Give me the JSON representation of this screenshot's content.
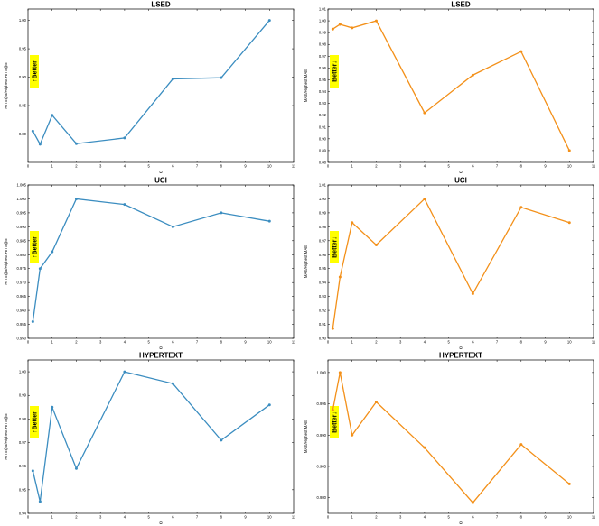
{
  "colors": {
    "blue": "#3b8dc0",
    "orange": "#f39019",
    "highlight": "#ffff00"
  },
  "chart_data": [
    {
      "type": "line",
      "title": "LSED",
      "xlabel": "Ω",
      "ylabel": "HITS@5/Highest HITS@5",
      "x": [
        0.2,
        0.5,
        1,
        2,
        4,
        6,
        8,
        10
      ],
      "series": [
        {
          "values": [
            0.805,
            0.782,
            0.833,
            0.783,
            0.793,
            0.897,
            0.899,
            1.0
          ]
        }
      ],
      "xlim": [
        0,
        11
      ],
      "ylim": [
        0.75,
        1.02
      ],
      "xticks": [
        0,
        1,
        2,
        3,
        4,
        5,
        6,
        7,
        8,
        9,
        10,
        11
      ],
      "yticks": [
        0.8,
        0.85,
        0.9,
        0.95,
        1.0
      ],
      "ytick_labels": [
        "0.80",
        "0.85",
        "0.90",
        "0.95",
        "1.00"
      ],
      "color": "#3b8dc0",
      "better": "up",
      "better_label": "Better"
    },
    {
      "type": "line",
      "title": "LSED",
      "xlabel": "Ω",
      "ylabel": "MAE/Highest MAE",
      "x": [
        0.2,
        0.5,
        1,
        2,
        4,
        6,
        8,
        10
      ],
      "series": [
        {
          "values": [
            0.993,
            0.997,
            0.994,
            1.0,
            0.922,
            0.954,
            0.974,
            0.89
          ]
        }
      ],
      "xlim": [
        0,
        11
      ],
      "ylim": [
        0.88,
        1.01
      ],
      "xticks": [
        0,
        1,
        2,
        3,
        4,
        5,
        6,
        7,
        8,
        9,
        10,
        11
      ],
      "yticks": [
        0.88,
        0.89,
        0.9,
        0.91,
        0.92,
        0.93,
        0.94,
        0.95,
        0.96,
        0.97,
        0.98,
        0.99,
        1.0,
        1.01
      ],
      "ytick_labels": [
        "0.88",
        "0.89",
        "0.90",
        "0.91",
        "0.92",
        "0.93",
        "0.94",
        "0.95",
        "0.96",
        "0.97",
        "0.98",
        "0.99",
        "1.00",
        "1.01"
      ],
      "color": "#f39019",
      "better": "down",
      "better_label": "Better"
    },
    {
      "type": "line",
      "title": "UCI",
      "xlabel": "Ω",
      "ylabel": "HITS@5/Highest HITS@5",
      "x": [
        0.2,
        0.5,
        1,
        2,
        4,
        6,
        8,
        10
      ],
      "series": [
        {
          "values": [
            0.956,
            0.975,
            0.981,
            1.0,
            0.998,
            0.99,
            0.995,
            0.992
          ]
        }
      ],
      "xlim": [
        0,
        11
      ],
      "ylim": [
        0.95,
        1.005
      ],
      "xticks": [
        0,
        1,
        2,
        3,
        4,
        5,
        6,
        7,
        8,
        9,
        10,
        11
      ],
      "yticks": [
        0.95,
        0.955,
        0.96,
        0.965,
        0.97,
        0.975,
        0.98,
        0.985,
        0.99,
        0.995,
        1.0,
        1.005
      ],
      "ytick_labels": [
        "0.950",
        "0.955",
        "0.960",
        "0.965",
        "0.970",
        "0.975",
        "0.980",
        "0.985",
        "0.990",
        "0.995",
        "1.000",
        "1.005"
      ],
      "color": "#3b8dc0",
      "better": "up",
      "better_label": "Better"
    },
    {
      "type": "line",
      "title": "UCI",
      "xlabel": "Ω",
      "ylabel": "MAE/Highest MAE",
      "x": [
        0.2,
        0.5,
        1,
        2,
        4,
        6,
        8,
        10
      ],
      "series": [
        {
          "values": [
            0.907,
            0.944,
            0.983,
            0.967,
            1.0,
            0.932,
            0.994,
            0.983
          ]
        }
      ],
      "xlim": [
        0,
        11
      ],
      "ylim": [
        0.9,
        1.01
      ],
      "xticks": [
        0,
        1,
        2,
        3,
        4,
        5,
        6,
        7,
        8,
        9,
        10,
        11
      ],
      "yticks": [
        0.9,
        0.91,
        0.92,
        0.93,
        0.94,
        0.95,
        0.96,
        0.97,
        0.98,
        0.99,
        1.0,
        1.01
      ],
      "ytick_labels": [
        "0.90",
        "0.91",
        "0.92",
        "0.93",
        "0.94",
        "0.95",
        "0.96",
        "0.97",
        "0.98",
        "0.99",
        "1.00",
        "1.01"
      ],
      "color": "#f39019",
      "better": "down",
      "better_label": "Better"
    },
    {
      "type": "line",
      "title": "HYPERTEXT",
      "xlabel": "Ω",
      "ylabel": "HITS@5/Highest HITS@5",
      "x": [
        0.2,
        0.5,
        1,
        2,
        4,
        6,
        8,
        10
      ],
      "series": [
        {
          "values": [
            0.958,
            0.945,
            0.985,
            0.959,
            1.0,
            0.995,
            0.971,
            0.986
          ]
        }
      ],
      "xlim": [
        0,
        11
      ],
      "ylim": [
        0.94,
        1.005
      ],
      "xticks": [
        0,
        1,
        2,
        3,
        4,
        5,
        6,
        7,
        8,
        9,
        10,
        11
      ],
      "yticks": [
        0.94,
        0.95,
        0.96,
        0.97,
        0.98,
        0.99,
        1.0
      ],
      "ytick_labels": [
        "0.94",
        "0.95",
        "0.96",
        "0.97",
        "0.98",
        "0.99",
        "1.00"
      ],
      "color": "#3b8dc0",
      "better": "up",
      "better_label": "Better"
    },
    {
      "type": "line",
      "title": "HYPERTEXT",
      "xlabel": "Ω",
      "ylabel": "MAE/Highest MAE",
      "x": [
        0.2,
        0.5,
        1,
        2,
        4,
        6,
        8,
        10
      ],
      "series": [
        {
          "values": [
            0.994,
            1.0,
            0.99,
            0.9953,
            0.988,
            0.9792,
            0.9885,
            0.9822
          ]
        }
      ],
      "xlim": [
        0,
        11
      ],
      "ylim": [
        0.9775,
        1.002
      ],
      "xticks": [
        0,
        1,
        2,
        3,
        4,
        5,
        6,
        7,
        8,
        9,
        10,
        11
      ],
      "yticks": [
        0.98,
        0.985,
        0.99,
        0.995,
        1.0
      ],
      "ytick_labels": [
        "0.980",
        "0.985",
        "0.990",
        "0.995",
        "1.000"
      ],
      "color": "#f39019",
      "better": "down",
      "better_label": "Better"
    }
  ]
}
